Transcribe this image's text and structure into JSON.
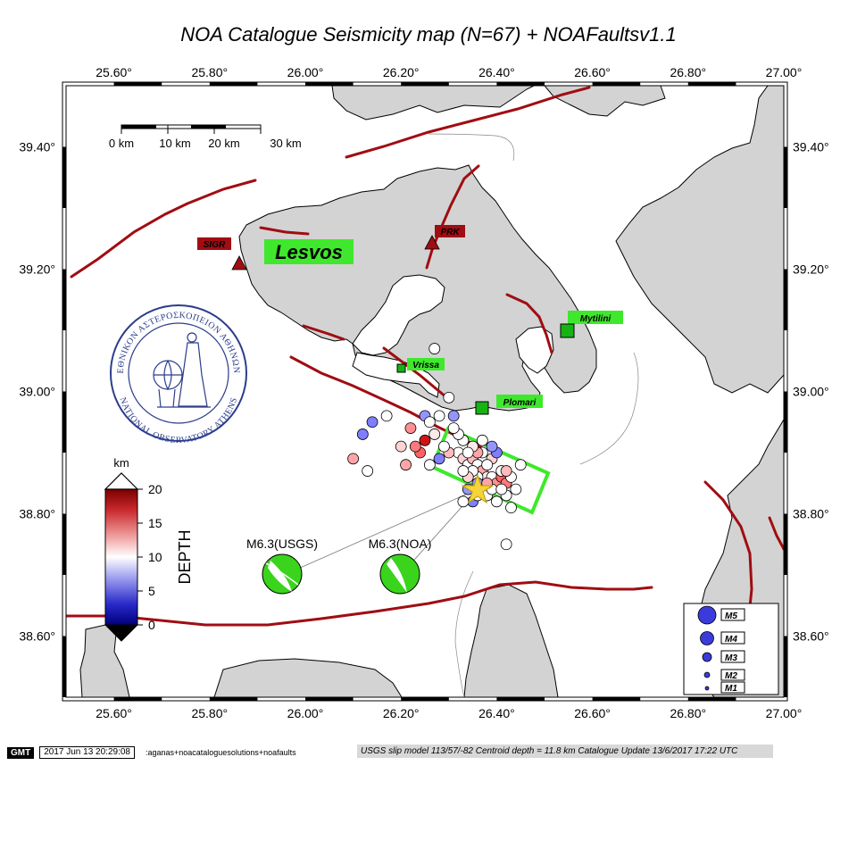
{
  "title": "NOA Catalogue Seismicity map (N=67) + NOAFaultsv1.1",
  "axes": {
    "lon_labels": [
      "25.60°",
      "25.80°",
      "26.00°",
      "26.20°",
      "26.40°",
      "26.60°",
      "26.80°",
      "27.00°"
    ],
    "lat_labels": [
      "39.40°",
      "39.20°",
      "39.00°",
      "38.80°",
      "38.60°"
    ]
  },
  "scale_bar": {
    "labels": [
      "0 km",
      "10 km",
      "20 km",
      "30 km"
    ]
  },
  "island": {
    "name": "Lesvos"
  },
  "stations": [
    {
      "code": "SIGR",
      "lon": 25.86,
      "lat": 39.215
    },
    {
      "code": "PRK",
      "lon": 26.265,
      "lat": 39.245
    }
  ],
  "towns": [
    {
      "name": "Mytilini",
      "lon": 26.555,
      "lat": 39.105,
      "size": "large"
    },
    {
      "name": "Vrissa",
      "lon": 26.17,
      "lat": 39.04,
      "size": "small"
    },
    {
      "name": "Plomari",
      "lon": 26.37,
      "lat": 38.975,
      "size": "large"
    }
  ],
  "logo": {
    "text_top": "ΕΘΝΙΚΟΝ ΑΣΤΕΡΟΣΚΟΠΕΙΟΝ ΑΘΗΝΩΝ",
    "text_bottom": "NATIONAL OBSERVATORY ATHENS"
  },
  "depth_scale": {
    "unit": "km",
    "title": "DEPTH",
    "ticks": [
      "20",
      "15",
      "10",
      "5",
      "0"
    ],
    "min": 0,
    "max": 20,
    "colors": {
      "deep": "#8b0000",
      "shallow": "#00007a",
      "mid": "#ffffff"
    }
  },
  "focal_mechanisms": [
    {
      "label": "M6.3(USGS)",
      "lon": 25.93,
      "lat": 38.705,
      "color": "#3ad41c"
    },
    {
      "label": "M6.3(NOA)",
      "lon": 26.19,
      "lat": 38.705,
      "color": "#3ad41c"
    }
  ],
  "mainshock": {
    "lon": 26.365,
    "lat": 38.84,
    "color": "#f5d33a"
  },
  "rupture_box_color": "#3fe82c",
  "fault_color": "#a00d12",
  "land_color": "#d3d3d3",
  "label_box_color": "#3fe82c",
  "station_color": "#a00d12",
  "magnitude_legend": [
    "M5",
    "M4",
    "M3",
    "M2",
    "M1"
  ],
  "events": [
    {
      "lon": 26.32,
      "lat": 38.9,
      "depth": 10
    },
    {
      "lon": 26.33,
      "lat": 38.89,
      "depth": 12
    },
    {
      "lon": 26.34,
      "lat": 38.88,
      "depth": 10
    },
    {
      "lon": 26.35,
      "lat": 38.89,
      "depth": 13
    },
    {
      "lon": 26.36,
      "lat": 38.88,
      "depth": 10
    },
    {
      "lon": 26.37,
      "lat": 38.87,
      "depth": 14
    },
    {
      "lon": 26.38,
      "lat": 38.86,
      "depth": 11
    },
    {
      "lon": 26.39,
      "lat": 38.86,
      "depth": 10
    },
    {
      "lon": 26.4,
      "lat": 38.85,
      "depth": 15
    },
    {
      "lon": 26.41,
      "lat": 38.86,
      "depth": 17
    },
    {
      "lon": 26.42,
      "lat": 38.85,
      "depth": 16
    },
    {
      "lon": 26.36,
      "lat": 38.86,
      "depth": 10
    },
    {
      "lon": 26.35,
      "lat": 38.87,
      "depth": 10
    },
    {
      "lon": 26.34,
      "lat": 38.86,
      "depth": 12
    },
    {
      "lon": 26.33,
      "lat": 38.87,
      "depth": 10
    },
    {
      "lon": 26.3,
      "lat": 38.9,
      "depth": 13
    },
    {
      "lon": 26.29,
      "lat": 38.91,
      "depth": 10
    },
    {
      "lon": 26.27,
      "lat": 38.93,
      "depth": 11
    },
    {
      "lon": 26.25,
      "lat": 38.92,
      "depth": 18
    },
    {
      "lon": 26.24,
      "lat": 38.9,
      "depth": 17
    },
    {
      "lon": 26.22,
      "lat": 38.94,
      "depth": 15
    },
    {
      "lon": 26.2,
      "lat": 38.91,
      "depth": 12
    },
    {
      "lon": 26.17,
      "lat": 38.96,
      "depth": 10
    },
    {
      "lon": 26.14,
      "lat": 38.95,
      "depth": 4
    },
    {
      "lon": 26.12,
      "lat": 38.93,
      "depth": 4
    },
    {
      "lon": 26.1,
      "lat": 38.89,
      "depth": 14
    },
    {
      "lon": 26.13,
      "lat": 38.87,
      "depth": 10
    },
    {
      "lon": 26.21,
      "lat": 38.88,
      "depth": 14
    },
    {
      "lon": 26.26,
      "lat": 38.88,
      "depth": 10
    },
    {
      "lon": 26.28,
      "lat": 38.89,
      "depth": 4
    },
    {
      "lon": 26.31,
      "lat": 38.96,
      "depth": 5
    },
    {
      "lon": 26.28,
      "lat": 38.96,
      "depth": 10
    },
    {
      "lon": 26.3,
      "lat": 38.99,
      "depth": 10
    },
    {
      "lon": 26.27,
      "lat": 39.07,
      "depth": 10
    },
    {
      "lon": 26.25,
      "lat": 38.96,
      "depth": 5
    },
    {
      "lon": 26.33,
      "lat": 38.92,
      "depth": 10
    },
    {
      "lon": 26.37,
      "lat": 38.9,
      "depth": 10
    },
    {
      "lon": 26.39,
      "lat": 38.89,
      "depth": 12
    },
    {
      "lon": 26.4,
      "lat": 38.9,
      "depth": 4
    },
    {
      "lon": 26.41,
      "lat": 38.87,
      "depth": 10
    },
    {
      "lon": 26.43,
      "lat": 38.86,
      "depth": 10
    },
    {
      "lon": 26.44,
      "lat": 38.84,
      "depth": 10
    },
    {
      "lon": 26.42,
      "lat": 38.83,
      "depth": 10
    },
    {
      "lon": 26.4,
      "lat": 38.82,
      "depth": 10
    },
    {
      "lon": 26.38,
      "lat": 38.83,
      "depth": 10
    },
    {
      "lon": 26.35,
      "lat": 38.82,
      "depth": 4
    },
    {
      "lon": 26.33,
      "lat": 38.82,
      "depth": 10
    },
    {
      "lon": 26.34,
      "lat": 38.84,
      "depth": 5
    },
    {
      "lon": 26.36,
      "lat": 38.85,
      "depth": 5
    },
    {
      "lon": 26.39,
      "lat": 38.84,
      "depth": 10
    },
    {
      "lon": 26.42,
      "lat": 38.87,
      "depth": 13
    },
    {
      "lon": 26.41,
      "lat": 38.84,
      "depth": 10
    },
    {
      "lon": 26.43,
      "lat": 38.81,
      "depth": 10
    },
    {
      "lon": 26.45,
      "lat": 38.88,
      "depth": 10
    },
    {
      "lon": 26.37,
      "lat": 38.92,
      "depth": 10
    },
    {
      "lon": 26.36,
      "lat": 38.9,
      "depth": 14
    },
    {
      "lon": 26.38,
      "lat": 38.88,
      "depth": 10
    },
    {
      "lon": 26.35,
      "lat": 38.91,
      "depth": 11
    },
    {
      "lon": 26.32,
      "lat": 38.93,
      "depth": 10
    },
    {
      "lon": 26.31,
      "lat": 38.94,
      "depth": 10
    },
    {
      "lon": 26.42,
      "lat": 38.75,
      "depth": 10
    },
    {
      "lon": 26.39,
      "lat": 38.91,
      "depth": 5
    },
    {
      "lon": 26.36,
      "lat": 38.83,
      "depth": 10
    },
    {
      "lon": 26.38,
      "lat": 38.85,
      "depth": 14
    },
    {
      "lon": 26.34,
      "lat": 38.9,
      "depth": 10
    },
    {
      "lon": 26.26,
      "lat": 38.95,
      "depth": 10
    },
    {
      "lon": 26.23,
      "lat": 38.91,
      "depth": 16
    }
  ],
  "footer": {
    "gmt_logo": "GMT",
    "timestamp": "2017 Jun 13 20:29:08",
    "command": ":aganas+noacataloguesolutions+noafaults",
    "usgs_note": "USGS slip model 113/57/-82  Centroid depth = 11.8 km  Catalogue Update 13/6/2017 17:22 UTC"
  }
}
